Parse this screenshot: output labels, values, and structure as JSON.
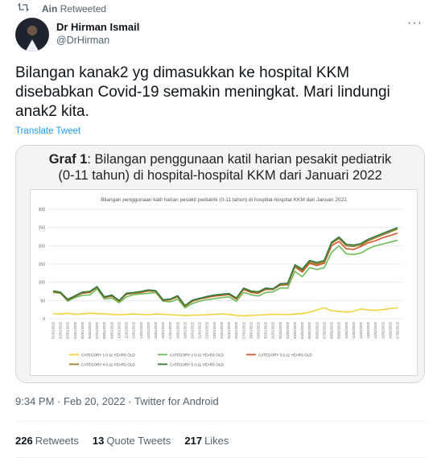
{
  "retweet": {
    "user": "Ain",
    "label": "Retweeted"
  },
  "author": {
    "name": "Dr Hirman Ismail",
    "handle": "@DrHirman"
  },
  "more_icon": "more-horizontal-icon",
  "tweet": {
    "text": "Bilangan kanak2 yg dimasukkan ke hospital KKM disebabkan Covid-19 semakin meningkat. Mari lindungi anak2 kita.",
    "translate": "Translate Tweet"
  },
  "media": {
    "title_bold": "Graf 1",
    "title_rest": ": Bilangan penggunaan katil harian pesakit pediatrik",
    "title_line2": "(0-11 tahun) di hospital-hospital KKM dari Januari 2022"
  },
  "chart_data": {
    "type": "line",
    "title": "Bilangan penggunaan katil harian pesakit pediatrik (0-11 tahun) di hospital-hospital KKM dari Januari 2022",
    "ylim": [
      0,
      300
    ],
    "yticks": [
      0,
      50,
      100,
      150,
      200,
      250,
      300
    ],
    "grid": true,
    "legend_position": "bottom",
    "x": [
      "01/01/2022",
      "02/01/2022",
      "03/01/2022",
      "04/01/2022",
      "05/01/2022",
      "06/01/2022",
      "07/01/2022",
      "08/01/2022",
      "09/01/2022",
      "10/01/2022",
      "11/01/2022",
      "12/01/2022",
      "13/01/2022",
      "14/01/2022",
      "15/01/2022",
      "16/01/2022",
      "17/01/2022",
      "18/01/2022",
      "19/01/2022",
      "20/01/2022",
      "21/01/2022",
      "22/01/2022",
      "23/01/2022",
      "24/01/2022",
      "25/01/2022",
      "26/01/2022",
      "27/01/2022",
      "28/01/2022",
      "29/01/2022",
      "30/01/2022",
      "31/01/2022",
      "01/02/2022",
      "02/02/2022",
      "03/02/2022",
      "04/02/2022",
      "05/02/2022",
      "06/02/2022",
      "07/02/2022",
      "08/02/2022",
      "09/02/2022",
      "10/02/2022",
      "11/02/2022",
      "12/02/2022",
      "13/02/2022",
      "14/02/2022",
      "15/02/2022",
      "16/02/2022",
      "17/02/2022"
    ],
    "series": [
      {
        "name": "CATEGORY 1 0-11 YEARS OLD",
        "color": "#f2d33b",
        "values": [
          14,
          13,
          15,
          12,
          13,
          15,
          14,
          13,
          12,
          11,
          12,
          13,
          12,
          11,
          13,
          12,
          11,
          10,
          9,
          10,
          10,
          11,
          12,
          13,
          12,
          9,
          8,
          9,
          10,
          11,
          12,
          12,
          11,
          13,
          14,
          18,
          24,
          30,
          22,
          20,
          18,
          20,
          27,
          24,
          23,
          25,
          28,
          30
        ]
      },
      {
        "name": "CATEGORY 2 0-11 YEARS OLD",
        "color": "#6cbd56",
        "values": [
          72,
          70,
          48,
          58,
          64,
          65,
          82,
          54,
          57,
          44,
          60,
          66,
          68,
          70,
          72,
          48,
          46,
          54,
          30,
          42,
          48,
          52,
          55,
          58,
          60,
          48,
          72,
          66,
          62,
          72,
          74,
          84,
          84,
          130,
          115,
          140,
          135,
          140,
          182,
          200,
          178,
          176,
          180,
          192,
          200,
          205,
          210,
          215
        ]
      },
      {
        "name": "CATEGORY 3 0-11 YEARS OLD",
        "color": "#d0572a",
        "values": [
          74,
          71,
          51,
          61,
          70,
          72,
          86,
          58,
          62,
          48,
          67,
          70,
          72,
          76,
          75,
          50,
          52,
          60,
          34,
          48,
          54,
          58,
          62,
          64,
          66,
          54,
          80,
          72,
          70,
          80,
          80,
          92,
          93,
          142,
          128,
          152,
          146,
          152,
          200,
          212,
          192,
          190,
          198,
          208,
          214,
          222,
          228,
          235
        ]
      },
      {
        "name": "CATEGORY 4 0-11 YEARS OLD",
        "color": "#9a7a28",
        "values": [
          75,
          72,
          52,
          62,
          72,
          74,
          87,
          59,
          64,
          49,
          69,
          71,
          74,
          78,
          76,
          51,
          53,
          62,
          35,
          50,
          55,
          60,
          64,
          66,
          68,
          56,
          82,
          74,
          72,
          82,
          81,
          94,
          95,
          145,
          132,
          156,
          150,
          156,
          206,
          220,
          200,
          198,
          202,
          214,
          222,
          230,
          238,
          246
        ]
      },
      {
        "name": "CATEGORY 5 0-11 YEARS OLD",
        "color": "#2e7a3c",
        "values": [
          76,
          73,
          53,
          63,
          73,
          75,
          88,
          60,
          65,
          50,
          70,
          72,
          75,
          79,
          77,
          52,
          54,
          63,
          36,
          51,
          56,
          61,
          65,
          67,
          69,
          57,
          84,
          76,
          74,
          84,
          82,
          96,
          97,
          148,
          136,
          160,
          154,
          160,
          210,
          224,
          204,
          202,
          206,
          218,
          226,
          234,
          242,
          250
        ]
      }
    ]
  },
  "meta": {
    "time": "9:34 PM",
    "sep": "·",
    "date": "Feb 20, 2022",
    "source": "Twitter for Android"
  },
  "stats": {
    "retweets": {
      "count": "226",
      "label": "Retweets"
    },
    "quotes": {
      "count": "13",
      "label": "Quote Tweets"
    },
    "likes": {
      "count": "217",
      "label": "Likes"
    }
  }
}
